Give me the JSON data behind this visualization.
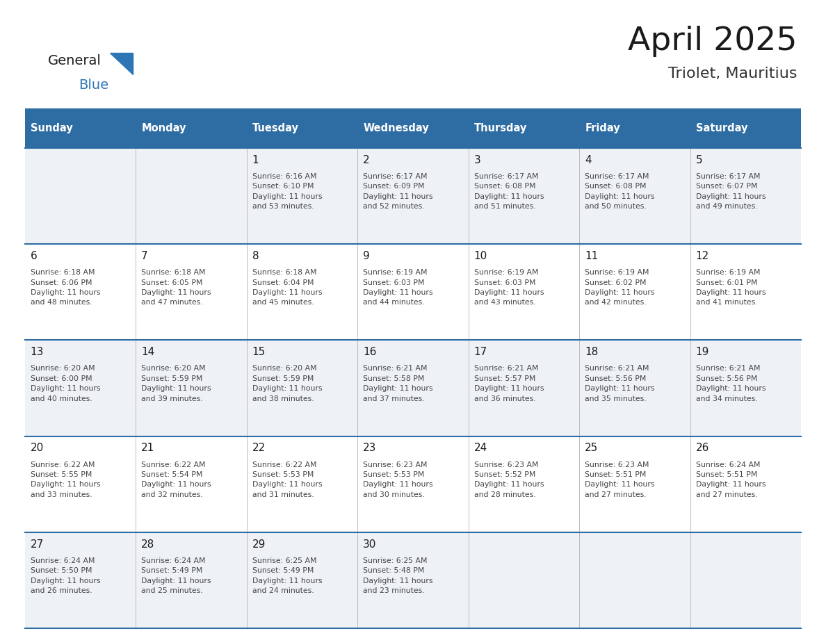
{
  "title": "April 2025",
  "subtitle": "Triolet, Mauritius",
  "days_of_week": [
    "Sunday",
    "Monday",
    "Tuesday",
    "Wednesday",
    "Thursday",
    "Friday",
    "Saturday"
  ],
  "header_bg_color": "#2e6da4",
  "header_text_color": "#ffffff",
  "cell_bg_odd": "#eef2f7",
  "cell_bg_even": "#ffffff",
  "row_line_color": "#2e6da4",
  "title_color": "#1a1a1a",
  "subtitle_color": "#333333",
  "day_number_color": "#1a1a1a",
  "cell_text_color": "#444444",
  "logo_general_color": "#1a1a1a",
  "logo_blue_color": "#2e75b6",
  "calendar": [
    [
      {
        "day": null,
        "text": ""
      },
      {
        "day": null,
        "text": ""
      },
      {
        "day": 1,
        "text": "Sunrise: 6:16 AM\nSunset: 6:10 PM\nDaylight: 11 hours\nand 53 minutes."
      },
      {
        "day": 2,
        "text": "Sunrise: 6:17 AM\nSunset: 6:09 PM\nDaylight: 11 hours\nand 52 minutes."
      },
      {
        "day": 3,
        "text": "Sunrise: 6:17 AM\nSunset: 6:08 PM\nDaylight: 11 hours\nand 51 minutes."
      },
      {
        "day": 4,
        "text": "Sunrise: 6:17 AM\nSunset: 6:08 PM\nDaylight: 11 hours\nand 50 minutes."
      },
      {
        "day": 5,
        "text": "Sunrise: 6:17 AM\nSunset: 6:07 PM\nDaylight: 11 hours\nand 49 minutes."
      }
    ],
    [
      {
        "day": 6,
        "text": "Sunrise: 6:18 AM\nSunset: 6:06 PM\nDaylight: 11 hours\nand 48 minutes."
      },
      {
        "day": 7,
        "text": "Sunrise: 6:18 AM\nSunset: 6:05 PM\nDaylight: 11 hours\nand 47 minutes."
      },
      {
        "day": 8,
        "text": "Sunrise: 6:18 AM\nSunset: 6:04 PM\nDaylight: 11 hours\nand 45 minutes."
      },
      {
        "day": 9,
        "text": "Sunrise: 6:19 AM\nSunset: 6:03 PM\nDaylight: 11 hours\nand 44 minutes."
      },
      {
        "day": 10,
        "text": "Sunrise: 6:19 AM\nSunset: 6:03 PM\nDaylight: 11 hours\nand 43 minutes."
      },
      {
        "day": 11,
        "text": "Sunrise: 6:19 AM\nSunset: 6:02 PM\nDaylight: 11 hours\nand 42 minutes."
      },
      {
        "day": 12,
        "text": "Sunrise: 6:19 AM\nSunset: 6:01 PM\nDaylight: 11 hours\nand 41 minutes."
      }
    ],
    [
      {
        "day": 13,
        "text": "Sunrise: 6:20 AM\nSunset: 6:00 PM\nDaylight: 11 hours\nand 40 minutes."
      },
      {
        "day": 14,
        "text": "Sunrise: 6:20 AM\nSunset: 5:59 PM\nDaylight: 11 hours\nand 39 minutes."
      },
      {
        "day": 15,
        "text": "Sunrise: 6:20 AM\nSunset: 5:59 PM\nDaylight: 11 hours\nand 38 minutes."
      },
      {
        "day": 16,
        "text": "Sunrise: 6:21 AM\nSunset: 5:58 PM\nDaylight: 11 hours\nand 37 minutes."
      },
      {
        "day": 17,
        "text": "Sunrise: 6:21 AM\nSunset: 5:57 PM\nDaylight: 11 hours\nand 36 minutes."
      },
      {
        "day": 18,
        "text": "Sunrise: 6:21 AM\nSunset: 5:56 PM\nDaylight: 11 hours\nand 35 minutes."
      },
      {
        "day": 19,
        "text": "Sunrise: 6:21 AM\nSunset: 5:56 PM\nDaylight: 11 hours\nand 34 minutes."
      }
    ],
    [
      {
        "day": 20,
        "text": "Sunrise: 6:22 AM\nSunset: 5:55 PM\nDaylight: 11 hours\nand 33 minutes."
      },
      {
        "day": 21,
        "text": "Sunrise: 6:22 AM\nSunset: 5:54 PM\nDaylight: 11 hours\nand 32 minutes."
      },
      {
        "day": 22,
        "text": "Sunrise: 6:22 AM\nSunset: 5:53 PM\nDaylight: 11 hours\nand 31 minutes."
      },
      {
        "day": 23,
        "text": "Sunrise: 6:23 AM\nSunset: 5:53 PM\nDaylight: 11 hours\nand 30 minutes."
      },
      {
        "day": 24,
        "text": "Sunrise: 6:23 AM\nSunset: 5:52 PM\nDaylight: 11 hours\nand 28 minutes."
      },
      {
        "day": 25,
        "text": "Sunrise: 6:23 AM\nSunset: 5:51 PM\nDaylight: 11 hours\nand 27 minutes."
      },
      {
        "day": 26,
        "text": "Sunrise: 6:24 AM\nSunset: 5:51 PM\nDaylight: 11 hours\nand 27 minutes."
      }
    ],
    [
      {
        "day": 27,
        "text": "Sunrise: 6:24 AM\nSunset: 5:50 PM\nDaylight: 11 hours\nand 26 minutes."
      },
      {
        "day": 28,
        "text": "Sunrise: 6:24 AM\nSunset: 5:49 PM\nDaylight: 11 hours\nand 25 minutes."
      },
      {
        "day": 29,
        "text": "Sunrise: 6:25 AM\nSunset: 5:49 PM\nDaylight: 11 hours\nand 24 minutes."
      },
      {
        "day": 30,
        "text": "Sunrise: 6:25 AM\nSunset: 5:48 PM\nDaylight: 11 hours\nand 23 minutes."
      },
      {
        "day": null,
        "text": ""
      },
      {
        "day": null,
        "text": ""
      },
      {
        "day": null,
        "text": ""
      }
    ]
  ]
}
